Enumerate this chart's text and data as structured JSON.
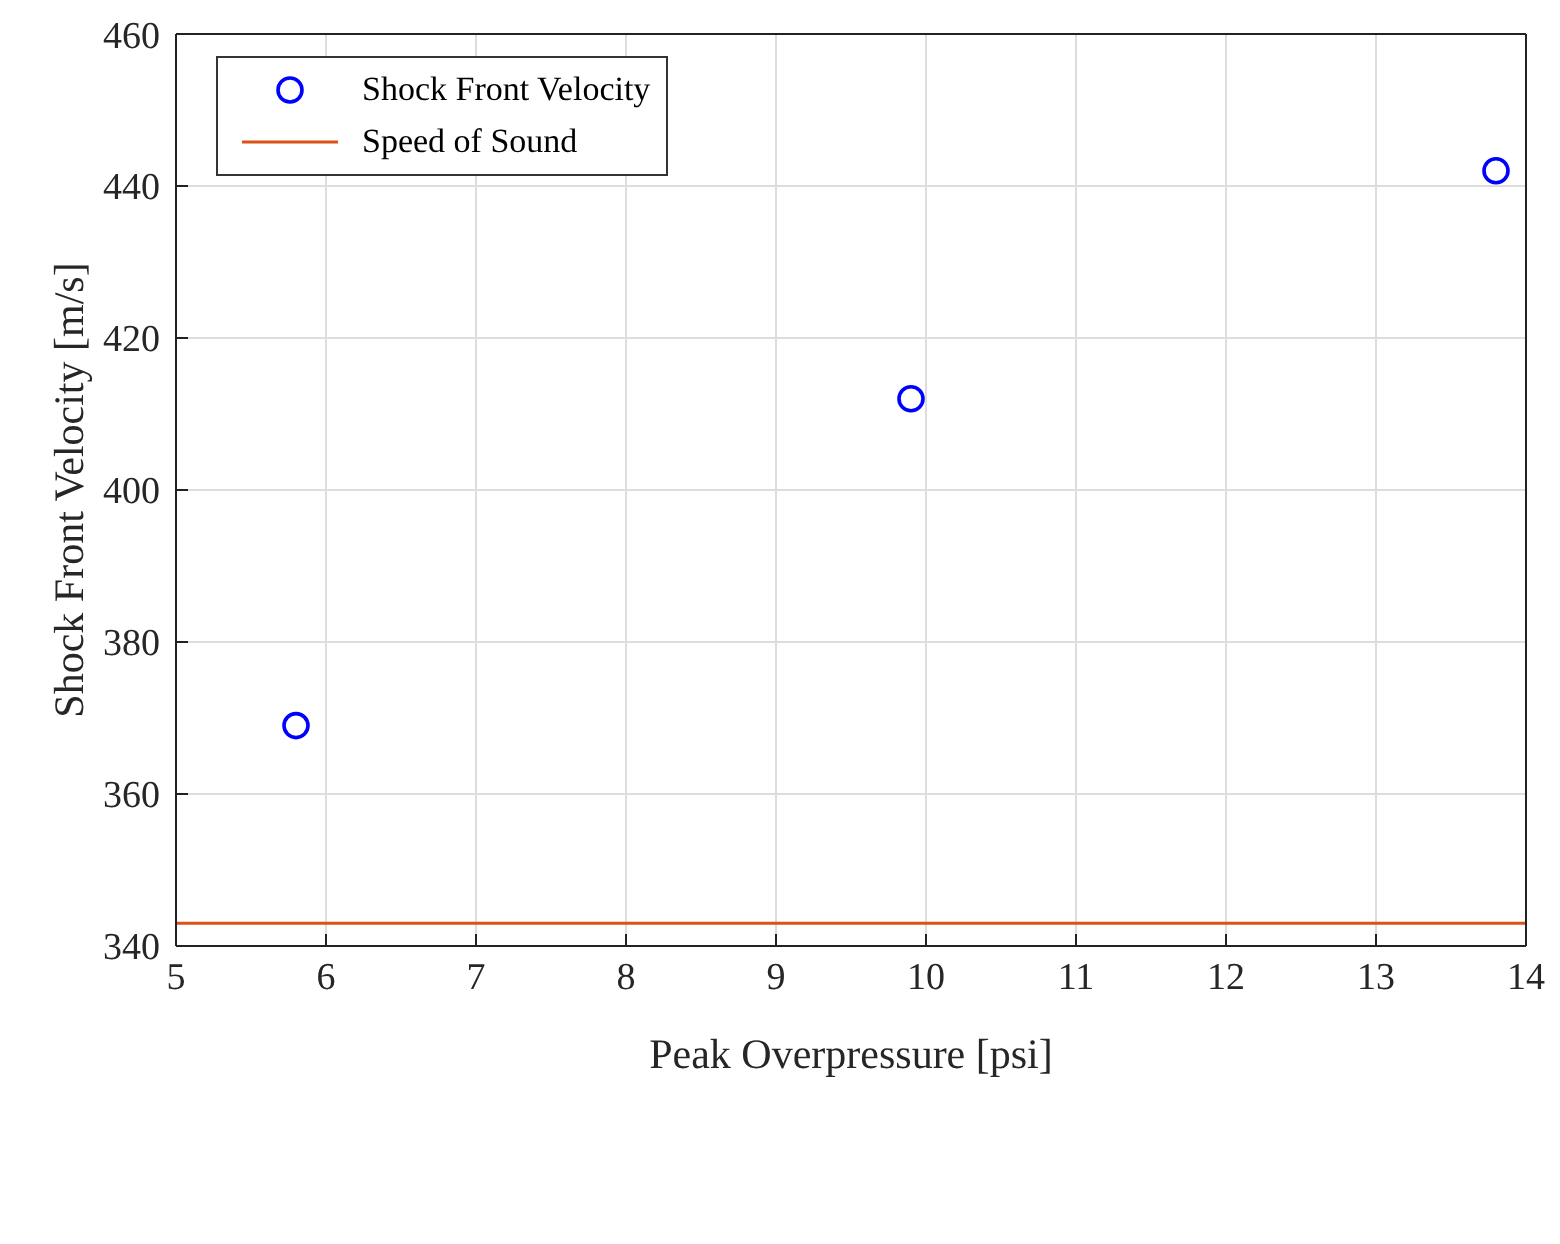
{
  "chart_data": {
    "type": "scatter",
    "xlabel": "Peak Overpressure [psi]",
    "ylabel": "Shock Front Velocity [m/s]",
    "series": [
      {
        "name": "Shock Front Velocity",
        "color": "#0000ff",
        "marker": "circle",
        "x": [
          5.8,
          9.9,
          13.8
        ],
        "values": [
          369,
          412,
          442
        ]
      },
      {
        "name": "Speed of Sound",
        "type": "line",
        "color": "#d95319",
        "marker": "none",
        "line_style": "solid",
        "x": [
          5,
          14
        ],
        "values": [
          343,
          343
        ]
      }
    ],
    "xlim": [
      5,
      14
    ],
    "xticks": [
      5,
      6,
      7,
      8,
      9,
      10,
      11,
      12,
      13,
      14
    ],
    "ylim": [
      340,
      460
    ],
    "yticks": [
      340,
      360,
      380,
      400,
      420,
      440,
      460
    ],
    "grid": true,
    "legend": "top left"
  }
}
